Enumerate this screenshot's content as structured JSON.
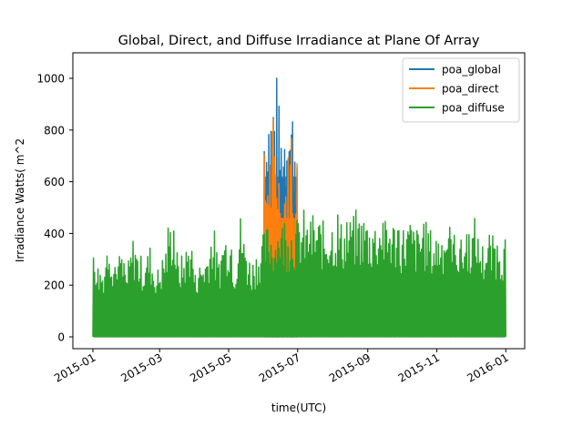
{
  "chart_data": {
    "type": "line",
    "title": "Global, Direct, and Diffuse Irradiance at Plane Of Array",
    "xlabel": "time(UTC)",
    "ylabel": "Irradiance Watts( m^2",
    "x_range": [
      "2015-01-01",
      "2015-12-31"
    ],
    "ylim": [
      -55,
      1100
    ],
    "x_ticks": [
      "2015-01",
      "2015-03",
      "2015-05",
      "2015-07",
      "2015-09",
      "2015-11",
      "2016-01"
    ],
    "y_ticks": [
      0,
      200,
      400,
      600,
      800,
      1000
    ],
    "grid": false,
    "legend_position": "top-right",
    "series": [
      {
        "name": "poa_global",
        "color": "#1f77b4",
        "x": [
          "2015-06-01",
          "2015-06-03",
          "2015-06-05",
          "2015-06-07",
          "2015-06-09",
          "2015-06-11",
          "2015-06-13",
          "2015-06-15",
          "2015-06-17",
          "2015-06-19",
          "2015-06-21",
          "2015-06-23",
          "2015-06-25",
          "2015-06-27",
          "2015-06-29",
          "2015-06-30"
        ],
        "daily_peak": [
          930,
          900,
          960,
          940,
          995,
          985,
          950,
          870,
          840,
          910,
          960,
          945,
          950,
          915,
          880,
          760
        ]
      },
      {
        "name": "poa_direct",
        "color": "#ff7f0e",
        "x": [
          "2015-06-01",
          "2015-06-03",
          "2015-06-05",
          "2015-06-07",
          "2015-06-09",
          "2015-06-11",
          "2015-06-13",
          "2015-06-15",
          "2015-06-17",
          "2015-06-19",
          "2015-06-21",
          "2015-06-23",
          "2015-06-25",
          "2015-06-27",
          "2015-06-29",
          "2015-06-30"
        ],
        "daily_peak": [
          720,
          690,
          760,
          740,
          790,
          780,
          760,
          620,
          560,
          600,
          730,
          720,
          810,
          650,
          600,
          720
        ]
      },
      {
        "name": "poa_diffuse",
        "color": "#2ca02c",
        "x": [
          "2015-01-01",
          "2015-01-05",
          "2015-01-10",
          "2015-01-15",
          "2015-01-20",
          "2015-01-25",
          "2015-01-30",
          "2015-02-05",
          "2015-02-10",
          "2015-02-15",
          "2015-02-20",
          "2015-02-25",
          "2015-03-02",
          "2015-03-07",
          "2015-03-12",
          "2015-03-17",
          "2015-03-22",
          "2015-03-27",
          "2015-04-01",
          "2015-04-06",
          "2015-04-11",
          "2015-04-16",
          "2015-04-21",
          "2015-04-26",
          "2015-05-01",
          "2015-05-06",
          "2015-05-11",
          "2015-05-16",
          "2015-05-21",
          "2015-05-26",
          "2015-05-31",
          "2015-06-05",
          "2015-06-10",
          "2015-06-15",
          "2015-06-20",
          "2015-06-25",
          "2015-06-30",
          "2015-07-05",
          "2015-07-10",
          "2015-07-15",
          "2015-07-20",
          "2015-07-25",
          "2015-07-30",
          "2015-08-04",
          "2015-08-09",
          "2015-08-14",
          "2015-08-19",
          "2015-08-24",
          "2015-08-29",
          "2015-09-03",
          "2015-09-08",
          "2015-09-13",
          "2015-09-18",
          "2015-09-23",
          "2015-09-28",
          "2015-10-03",
          "2015-10-08",
          "2015-10-13",
          "2015-10-18",
          "2015-10-23",
          "2015-10-28",
          "2015-11-02",
          "2015-11-07",
          "2015-11-12",
          "2015-11-17",
          "2015-11-22",
          "2015-11-27",
          "2015-12-02",
          "2015-12-07",
          "2015-12-12",
          "2015-12-17",
          "2015-12-22",
          "2015-12-27",
          "2015-12-31"
        ],
        "daily_peak": [
          395,
          290,
          280,
          410,
          300,
          330,
          250,
          390,
          330,
          300,
          360,
          250,
          300,
          380,
          485,
          300,
          330,
          390,
          250,
          300,
          330,
          440,
          285,
          400,
          430,
          300,
          480,
          340,
          300,
          350,
          400,
          450,
          420,
          460,
          440,
          450,
          460,
          470,
          450,
          460,
          465,
          440,
          470,
          460,
          450,
          455,
          470,
          460,
          485,
          440,
          460,
          470,
          440,
          460,
          430,
          440,
          460,
          420,
          440,
          450,
          400,
          420,
          430,
          440,
          400,
          380,
          420,
          440,
          400,
          360,
          380,
          400,
          380,
          395
        ]
      }
    ]
  }
}
